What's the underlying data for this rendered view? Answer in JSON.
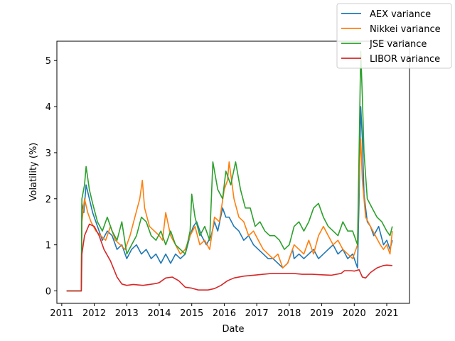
{
  "chart_data": {
    "type": "line",
    "title": "",
    "xlabel": "Date",
    "ylabel": "Volatility (%)",
    "xlim": [
      2010.85,
      2021.7
    ],
    "ylim": [
      -0.27,
      5.42
    ],
    "x_ticks": [
      2011,
      2012,
      2013,
      2014,
      2015,
      2016,
      2017,
      2018,
      2019,
      2020,
      2021
    ],
    "x_tick_labels": [
      "2011",
      "2012",
      "2013",
      "2014",
      "2015",
      "2016",
      "2017",
      "2018",
      "2019",
      "2020",
      "2021"
    ],
    "y_ticks": [
      0,
      1,
      2,
      3,
      4,
      5
    ],
    "y_tick_labels": [
      "0",
      "1",
      "2",
      "3",
      "4",
      "5"
    ],
    "grid": false,
    "legend_position": "top-right",
    "series": [
      {
        "name": "AEX variance",
        "color": "#1f77b4",
        "x": [
          2011.15,
          2011.6,
          2011.62,
          2011.68,
          2011.75,
          2011.85,
          2011.95,
          2012.1,
          2012.25,
          2012.4,
          2012.55,
          2012.7,
          2012.85,
          2013.0,
          2013.15,
          2013.3,
          2013.45,
          2013.6,
          2013.75,
          2013.9,
          2014.05,
          2014.2,
          2014.35,
          2014.5,
          2014.65,
          2014.8,
          2014.95,
          2015.05,
          2015.15,
          2015.3,
          2015.45,
          2015.6,
          2015.7,
          2015.8,
          2015.95,
          2016.05,
          2016.15,
          2016.3,
          2016.45,
          2016.6,
          2016.75,
          2016.9,
          2017.05,
          2017.2,
          2017.35,
          2017.5,
          2017.65,
          2017.8,
          2017.95,
          2018.1,
          2018.15,
          2018.3,
          2018.45,
          2018.6,
          2018.75,
          2018.9,
          2019.05,
          2019.2,
          2019.35,
          2019.5,
          2019.65,
          2019.8,
          2019.95,
          2020.1,
          2020.15,
          2020.2,
          2020.25,
          2020.3,
          2020.4,
          2020.5,
          2020.6,
          2020.75,
          2020.9,
          2021.0,
          2021.1,
          2021.17
        ],
        "values": [
          0.0,
          0.0,
          1.9,
          1.7,
          2.3,
          2.0,
          1.7,
          1.4,
          1.1,
          1.3,
          1.2,
          0.9,
          1.0,
          0.7,
          0.9,
          1.0,
          0.8,
          0.9,
          0.7,
          0.8,
          0.6,
          0.8,
          0.6,
          0.8,
          0.7,
          0.8,
          1.2,
          1.4,
          1.5,
          1.2,
          1.0,
          1.2,
          1.5,
          1.3,
          1.8,
          1.6,
          1.6,
          1.4,
          1.3,
          1.1,
          1.2,
          1.0,
          0.9,
          0.8,
          0.7,
          0.7,
          0.6,
          0.5,
          0.6,
          0.9,
          0.7,
          0.8,
          0.7,
          0.8,
          0.9,
          0.7,
          0.8,
          0.9,
          1.0,
          0.8,
          0.9,
          0.7,
          0.8,
          0.5,
          2.0,
          4.0,
          3.3,
          2.1,
          1.5,
          1.4,
          1.2,
          1.4,
          1.0,
          1.1,
          0.9,
          1.1
        ]
      },
      {
        "name": "Nikkei variance",
        "color": "#ff7f0e",
        "x": [
          2011.15,
          2011.6,
          2011.62,
          2011.7,
          2011.8,
          2011.9,
          2012.05,
          2012.2,
          2012.35,
          2012.5,
          2012.65,
          2012.8,
          2012.95,
          2013.1,
          2013.25,
          2013.4,
          2013.48,
          2013.55,
          2013.7,
          2013.85,
          2014.0,
          2014.1,
          2014.2,
          2014.35,
          2014.5,
          2014.65,
          2014.8,
          2014.95,
          2015.1,
          2015.25,
          2015.4,
          2015.55,
          2015.7,
          2015.85,
          2016.0,
          2016.1,
          2016.15,
          2016.3,
          2016.45,
          2016.6,
          2016.75,
          2016.9,
          2017.05,
          2017.2,
          2017.35,
          2017.5,
          2017.65,
          2017.8,
          2017.95,
          2018.05,
          2018.15,
          2018.3,
          2018.45,
          2018.6,
          2018.75,
          2018.9,
          2019.05,
          2019.2,
          2019.35,
          2019.5,
          2019.65,
          2019.8,
          2019.95,
          2020.1,
          2020.15,
          2020.2,
          2020.25,
          2020.35,
          2020.5,
          2020.65,
          2020.8,
          2020.9,
          2021.0,
          2021.1,
          2021.17
        ],
        "values": [
          0.0,
          0.0,
          1.5,
          2.0,
          1.7,
          1.5,
          1.3,
          1.2,
          1.1,
          1.4,
          1.1,
          1.0,
          0.9,
          1.2,
          1.6,
          2.0,
          2.4,
          1.8,
          1.4,
          1.3,
          1.2,
          1.1,
          1.7,
          1.2,
          1.0,
          0.8,
          0.9,
          1.2,
          1.4,
          1.0,
          1.1,
          0.9,
          1.6,
          1.5,
          2.2,
          2.4,
          2.8,
          2.0,
          1.6,
          1.5,
          1.2,
          1.3,
          1.1,
          0.9,
          0.8,
          0.7,
          0.8,
          0.5,
          0.6,
          0.8,
          1.0,
          0.9,
          0.8,
          1.1,
          0.8,
          1.2,
          1.4,
          1.2,
          1.0,
          1.1,
          0.9,
          0.8,
          0.7,
          1.0,
          2.5,
          3.3,
          2.4,
          1.6,
          1.4,
          1.2,
          1.0,
          0.9,
          1.0,
          0.8,
          1.3
        ]
      },
      {
        "name": "JSE variance",
        "color": "#2ca02c",
        "x": [
          2011.15,
          2011.6,
          2011.62,
          2011.7,
          2011.75,
          2011.85,
          2011.95,
          2012.1,
          2012.25,
          2012.4,
          2012.55,
          2012.7,
          2012.85,
          2013.0,
          2013.15,
          2013.3,
          2013.45,
          2013.6,
          2013.75,
          2013.9,
          2014.05,
          2014.2,
          2014.35,
          2014.5,
          2014.65,
          2014.8,
          2014.95,
          2015.0,
          2015.1,
          2015.25,
          2015.4,
          2015.55,
          2015.65,
          2015.8,
          2015.95,
          2016.05,
          2016.2,
          2016.35,
          2016.5,
          2016.65,
          2016.8,
          2016.95,
          2017.1,
          2017.25,
          2017.4,
          2017.55,
          2017.7,
          2017.85,
          2018.0,
          2018.15,
          2018.3,
          2018.45,
          2018.6,
          2018.75,
          2018.9,
          2019.05,
          2019.2,
          2019.35,
          2019.5,
          2019.65,
          2019.8,
          2019.95,
          2020.1,
          2020.15,
          2020.2,
          2020.25,
          2020.3,
          2020.4,
          2020.55,
          2020.7,
          2020.85,
          2021.0,
          2021.1,
          2021.17
        ],
        "values": [
          0.0,
          0.0,
          2.0,
          2.3,
          2.7,
          2.2,
          1.9,
          1.5,
          1.3,
          1.6,
          1.3,
          1.1,
          1.5,
          0.8,
          1.0,
          1.2,
          1.6,
          1.5,
          1.2,
          1.1,
          1.3,
          1.0,
          1.3,
          1.0,
          0.9,
          0.8,
          1.3,
          2.1,
          1.6,
          1.2,
          1.4,
          1.1,
          2.8,
          2.2,
          2.0,
          2.6,
          2.3,
          2.8,
          2.2,
          1.8,
          1.8,
          1.4,
          1.5,
          1.3,
          1.2,
          1.2,
          1.1,
          0.9,
          1.0,
          1.4,
          1.5,
          1.3,
          1.5,
          1.8,
          1.9,
          1.6,
          1.4,
          1.3,
          1.2,
          1.5,
          1.3,
          1.3,
          1.0,
          3.0,
          5.2,
          4.2,
          3.0,
          2.0,
          1.8,
          1.6,
          1.5,
          1.3,
          1.2,
          1.4
        ]
      },
      {
        "name": "LIBOR variance",
        "color": "#d62728",
        "x": [
          2011.15,
          2011.6,
          2011.62,
          2011.7,
          2011.85,
          2012.0,
          2012.15,
          2012.3,
          2012.5,
          2012.7,
          2012.85,
          2013.0,
          2013.2,
          2013.5,
          2013.7,
          2013.9,
          2014.0,
          2014.2,
          2014.4,
          2014.6,
          2014.8,
          2015.0,
          2015.2,
          2015.5,
          2015.7,
          2015.9,
          2016.1,
          2016.3,
          2016.6,
          2016.9,
          2017.2,
          2017.5,
          2017.8,
          2018.1,
          2018.4,
          2018.7,
          2019.0,
          2019.3,
          2019.6,
          2019.7,
          2019.9,
          2020.0,
          2020.15,
          2020.25,
          2020.35,
          2020.5,
          2020.7,
          2020.9,
          2021.0,
          2021.17
        ],
        "values": [
          0.0,
          0.0,
          0.8,
          1.2,
          1.45,
          1.4,
          1.2,
          0.9,
          0.65,
          0.3,
          0.15,
          0.12,
          0.14,
          0.12,
          0.14,
          0.16,
          0.18,
          0.28,
          0.3,
          0.22,
          0.08,
          0.06,
          0.02,
          0.02,
          0.05,
          0.12,
          0.22,
          0.28,
          0.32,
          0.34,
          0.36,
          0.38,
          0.38,
          0.38,
          0.36,
          0.36,
          0.35,
          0.34,
          0.38,
          0.44,
          0.44,
          0.43,
          0.46,
          0.3,
          0.28,
          0.4,
          0.5,
          0.55,
          0.56,
          0.55
        ]
      }
    ]
  }
}
